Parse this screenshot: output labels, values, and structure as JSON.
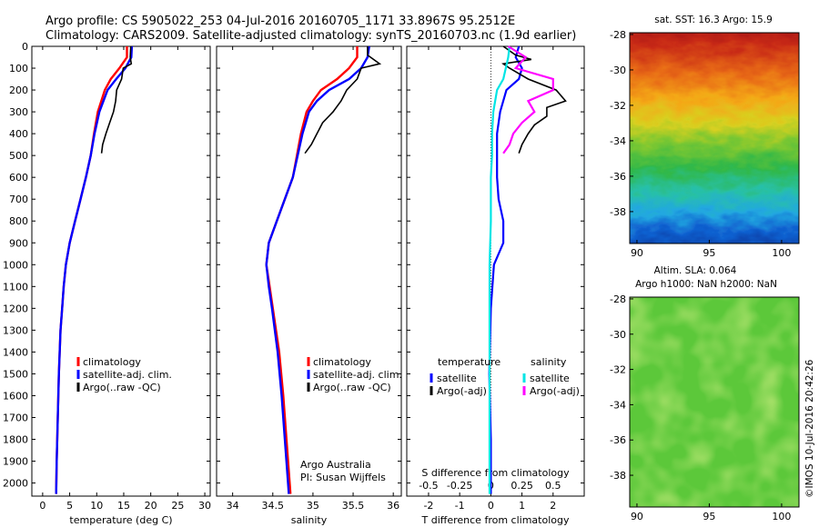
{
  "header": {
    "line1": "Argo profile: CS 5905022_253 04-Jul-2016 20160705_1171 33.8967S 95.2512E",
    "line2": "Climatology: CARS2009. Satellite-adjusted climatology: synTS_20160703.nc (1.9d earlier)"
  },
  "colors": {
    "climatology": "#ff0000",
    "satellite": "#0000ff",
    "argo": "#000000",
    "s_satellite": "#00e5e5",
    "s_argo": "#ff00ff"
  },
  "chart_data": [
    {
      "type": "line",
      "xlabel": "temperature (deg C)",
      "xlim": [
        -2,
        31
      ],
      "ylim": [
        2060,
        0
      ],
      "xticks": [
        "0",
        "5",
        "10",
        "15",
        "20",
        "25",
        "30"
      ],
      "yticks": [
        "0",
        "100",
        "200",
        "300",
        "400",
        "500",
        "600",
        "700",
        "800",
        "900",
        "1000",
        "1100",
        "1200",
        "1300",
        "1400",
        "1500",
        "1600",
        "1700",
        "1800",
        "1900",
        "2000"
      ],
      "legend": {
        "placement": "lower-center",
        "entries": [
          "climatology",
          "satellite-adj. clim.",
          "Argo(..raw -QC)"
        ]
      },
      "series": [
        {
          "name": "climatology",
          "depth": [
            0,
            50,
            100,
            150,
            200,
            300,
            400,
            500,
            600,
            700,
            800,
            900,
            1000,
            1100,
            1200,
            1300,
            1500,
            1700,
            1900,
            2050
          ],
          "values": [
            15.6,
            15.6,
            14.2,
            12.6,
            11.5,
            10.2,
            9.5,
            8.9,
            8.0,
            7.0,
            6.0,
            5.0,
            4.3,
            3.9,
            3.6,
            3.3,
            3.0,
            2.8,
            2.6,
            2.5
          ]
        },
        {
          "name": "satellite-adj. clim.",
          "depth": [
            0,
            50,
            100,
            150,
            200,
            300,
            400,
            500,
            600,
            700,
            800,
            900,
            1000,
            1100,
            1200,
            1300,
            1500,
            1700,
            1900,
            2050
          ],
          "values": [
            16.5,
            16.4,
            15.3,
            13.6,
            12.0,
            10.5,
            9.6,
            8.9,
            8.0,
            7.0,
            6.0,
            5.0,
            4.3,
            3.9,
            3.6,
            3.3,
            3.0,
            2.8,
            2.6,
            2.5
          ]
        },
        {
          "name": "Argo(..raw -QC)",
          "depth": [
            0,
            50,
            80,
            100,
            150,
            200,
            250,
            300,
            350,
            400,
            450,
            490
          ],
          "values": [
            16.3,
            16.2,
            16.4,
            14.9,
            14.6,
            13.7,
            13.5,
            13.1,
            12.4,
            11.7,
            11.1,
            10.9
          ]
        }
      ]
    },
    {
      "type": "line",
      "xlabel": "salinity",
      "xlim": [
        33.8,
        36.1
      ],
      "ylim": [
        2060,
        0
      ],
      "xticks": [
        "34",
        "34.5",
        "35",
        "35.5",
        "36"
      ],
      "legend": {
        "placement": "lower-right",
        "entries": [
          "climatology",
          "satellite-adj. clim.",
          "Argo(..raw -QC)"
        ]
      },
      "annotations": [
        "Argo Australia",
        "PI: Susan Wijffels"
      ],
      "series": [
        {
          "name": "climatology",
          "depth": [
            0,
            50,
            100,
            150,
            200,
            250,
            300,
            400,
            500,
            600,
            700,
            800,
            900,
            1000,
            1100,
            1200,
            1400,
            1600,
            1800,
            2050
          ],
          "values": [
            35.55,
            35.55,
            35.45,
            35.3,
            35.1,
            35.0,
            34.92,
            34.85,
            34.8,
            34.75,
            34.65,
            34.55,
            34.45,
            34.42,
            34.46,
            34.5,
            34.58,
            34.63,
            34.67,
            34.72
          ]
        },
        {
          "name": "satellite-adj. clim.",
          "depth": [
            0,
            50,
            100,
            150,
            200,
            250,
            300,
            400,
            500,
            600,
            700,
            800,
            900,
            1000,
            1100,
            1200,
            1400,
            1600,
            1800,
            2050
          ],
          "values": [
            35.7,
            35.68,
            35.6,
            35.45,
            35.2,
            35.05,
            34.95,
            34.87,
            34.81,
            34.75,
            34.65,
            34.55,
            34.45,
            34.42,
            34.45,
            34.49,
            34.56,
            34.61,
            34.65,
            34.7
          ]
        },
        {
          "name": "Argo(..raw -QC)",
          "depth": [
            0,
            40,
            80,
            100,
            150,
            200,
            250,
            300,
            350,
            400,
            450,
            490
          ],
          "values": [
            35.68,
            35.68,
            35.83,
            35.6,
            35.55,
            35.42,
            35.35,
            35.25,
            35.12,
            35.05,
            34.98,
            34.9
          ]
        }
      ]
    },
    {
      "type": "line",
      "xlabel": "T difference from climatology",
      "xlabel_top": "S difference from climatology",
      "xlim": [
        -2.7,
        3.0
      ],
      "xlim_salinity": [
        -0.675,
        0.75
      ],
      "ylim": [
        2060,
        0
      ],
      "xticks": [
        "-2",
        "-1",
        "0",
        "1",
        "2"
      ],
      "xticks_top": [
        "-0.5",
        "-0.25",
        "0",
        "0.25",
        "0.5"
      ],
      "legend": {
        "placement": "lower-center",
        "title_t": "temperature",
        "title_s": "salinity",
        "entries": [
          "satellite",
          "Argo(-adj)",
          "satellite",
          "Argo(-adj)"
        ]
      },
      "series": [
        {
          "name": "satellite",
          "kind": "T",
          "depth": [
            0,
            50,
            100,
            150,
            200,
            300,
            400,
            500,
            600,
            700,
            800,
            900,
            1000,
            1200,
            1500,
            1800,
            2050
          ],
          "values": [
            0.9,
            0.8,
            1.0,
            0.9,
            0.5,
            0.3,
            0.2,
            0.2,
            0.2,
            0.25,
            0.4,
            0.4,
            0.1,
            0.0,
            -0.05,
            0.0,
            0.0
          ]
        },
        {
          "name": "Argo(-adj)",
          "kind": "T",
          "depth": [
            0,
            40,
            60,
            80,
            100,
            150,
            200,
            250,
            280,
            320,
            360,
            400,
            450,
            490
          ],
          "values": [
            0.4,
            0.8,
            1.3,
            0.4,
            0.6,
            1.2,
            2.1,
            2.4,
            1.8,
            1.8,
            1.4,
            1.2,
            1.0,
            0.9
          ]
        },
        {
          "name": "satellite",
          "kind": "S",
          "depth": [
            0,
            50,
            100,
            150,
            200,
            300,
            400,
            500,
            600,
            800,
            1000,
            1200,
            1500,
            1800,
            2050
          ],
          "values": [
            0.15,
            0.14,
            0.12,
            0.1,
            0.05,
            0.02,
            0.01,
            0.01,
            0.0,
            0.0,
            -0.01,
            -0.01,
            -0.01,
            -0.01,
            -0.01
          ]
        },
        {
          "name": "Argo(-adj)",
          "kind": "S",
          "depth": [
            0,
            50,
            100,
            150,
            200,
            250,
            300,
            350,
            400,
            450,
            490
          ],
          "values": [
            0.14,
            0.28,
            0.2,
            0.5,
            0.5,
            0.3,
            0.35,
            0.25,
            0.18,
            0.15,
            0.1
          ]
        }
      ]
    },
    {
      "type": "heatmap",
      "title": "sat. SST: 16.3 Argo: 15.9",
      "xticks": [
        "90",
        "95",
        "100"
      ],
      "yticks": [
        "-28",
        "-30",
        "-32",
        "-34",
        "-36",
        "-38"
      ],
      "xlim": [
        89.5,
        101.2
      ],
      "ylim": [
        -39.8,
        -27.9
      ]
    },
    {
      "type": "heatmap",
      "title_line1": "Altim. SLA: 0.064",
      "title_line2": "Argo h1000: NaN h2000: NaN",
      "xticks": [
        "90",
        "95",
        "100"
      ],
      "yticks": [
        "-28",
        "-30",
        "-32",
        "-34",
        "-36",
        "-38"
      ],
      "xlim": [
        89.5,
        101.2
      ],
      "ylim": [
        -39.8,
        -27.9
      ]
    }
  ],
  "credit": "©IMOS 10-Jul-2016 20:42:26"
}
